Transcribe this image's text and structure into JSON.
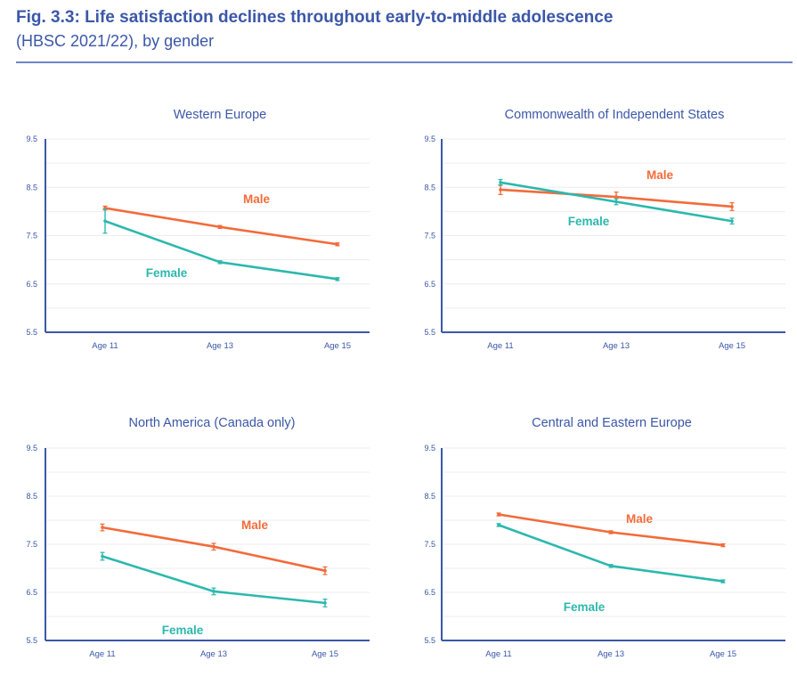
{
  "header": {
    "title": "Fig. 3.3: Life satisfaction declines throughout early-to-middle adolescence",
    "subtitle": "(HBSC 2021/22), by gender"
  },
  "colors": {
    "male": "#f26b3a",
    "female": "#2cb8ad",
    "axis": "#3b57a8",
    "text": "#3b57a8",
    "grid": "#ececec"
  },
  "chart_data": [
    {
      "type": "line",
      "title": "Western Europe",
      "categories": [
        "Age 11",
        "Age 13",
        "Age 15"
      ],
      "yticks": [
        "9.5",
        "8.5",
        "7.5",
        "6.5",
        "5.5"
      ],
      "ylim": [
        5.5,
        9.5
      ],
      "grid": true,
      "series": [
        {
          "name": "Male",
          "values": [
            8.07,
            7.68,
            7.32
          ],
          "errors": [
            0.04,
            0.03,
            0.03
          ]
        },
        {
          "name": "Female",
          "values": [
            7.8,
            6.95,
            6.6
          ],
          "errors": [
            0.25,
            0.03,
            0.03
          ]
        }
      ]
    },
    {
      "type": "line",
      "title": "Commonwealth of Independent States",
      "categories": [
        "Age 11",
        "Age 13",
        "Age 15"
      ],
      "yticks": [
        "9.5",
        "8.5",
        "7.5",
        "6.5",
        "5.5"
      ],
      "ylim": [
        5.5,
        9.5
      ],
      "grid": true,
      "series": [
        {
          "name": "Male",
          "values": [
            8.45,
            8.3,
            8.1
          ],
          "errors": [
            0.1,
            0.1,
            0.08
          ]
        },
        {
          "name": "Female",
          "values": [
            8.6,
            8.2,
            7.8
          ],
          "errors": [
            0.06,
            0.06,
            0.06
          ]
        }
      ]
    },
    {
      "type": "line",
      "title": "North America (Canada only)",
      "categories": [
        "Age 11",
        "Age 13",
        "Age 15"
      ],
      "yticks": [
        "9.5",
        "8.5",
        "7.5",
        "6.5",
        "5.5"
      ],
      "ylim": [
        5.5,
        9.5
      ],
      "grid": true,
      "series": [
        {
          "name": "Male",
          "values": [
            7.85,
            7.45,
            6.95
          ],
          "errors": [
            0.07,
            0.07,
            0.08
          ]
        },
        {
          "name": "Female",
          "values": [
            7.25,
            6.52,
            6.28
          ],
          "errors": [
            0.08,
            0.07,
            0.08
          ]
        }
      ]
    },
    {
      "type": "line",
      "title": "Central and Eastern Europe",
      "categories": [
        "Age 11",
        "Age 13",
        "Age 15"
      ],
      "yticks": [
        "9.5",
        "8.5",
        "7.5",
        "6.5",
        "5.5"
      ],
      "ylim": [
        5.5,
        9.5
      ],
      "grid": true,
      "series": [
        {
          "name": "Male",
          "values": [
            8.12,
            7.75,
            7.48
          ],
          "errors": [
            0.03,
            0.03,
            0.03
          ]
        },
        {
          "name": "Female",
          "values": [
            7.9,
            7.05,
            6.73
          ],
          "errors": [
            0.03,
            0.03,
            0.03
          ]
        }
      ]
    }
  ]
}
